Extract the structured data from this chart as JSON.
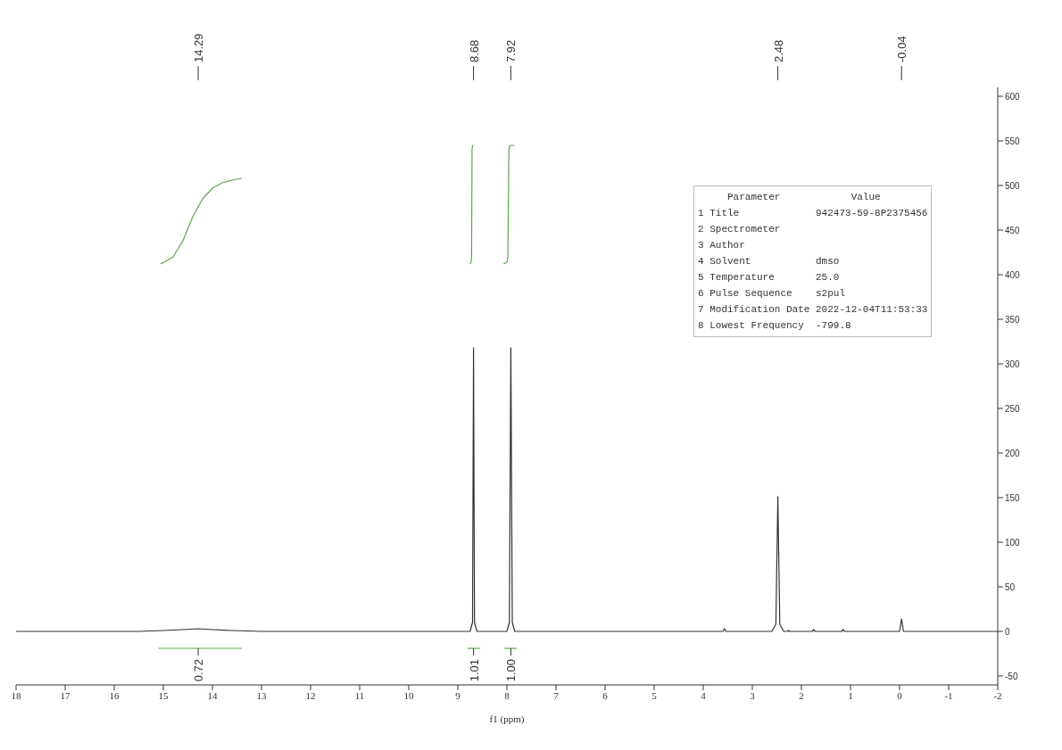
{
  "chart_data": {
    "type": "line",
    "xlabel": "f1 (ppm)",
    "xlim": [
      18,
      -2
    ],
    "xticks": [
      18,
      17,
      16,
      15,
      14,
      13,
      12,
      11,
      10,
      9,
      8,
      7,
      6,
      5,
      4,
      3,
      2,
      1,
      0,
      -1,
      -2
    ],
    "ylim": [
      -60,
      610
    ],
    "yticks": [
      -50,
      0,
      50,
      100,
      150,
      200,
      250,
      300,
      350,
      400,
      450,
      500,
      550,
      600
    ],
    "marker": "none",
    "line_style": "solid",
    "series": [
      {
        "color": "#333333",
        "x": [
          18,
          15.5,
          15,
          14.6,
          14.29,
          14.0,
          13.6,
          13,
          9.0,
          8.75,
          8.7,
          8.68,
          8.66,
          8.61,
          8.3,
          8.0,
          7.95,
          7.92,
          7.89,
          7.84,
          7.7,
          5,
          3.6,
          3.57,
          3.54,
          2.6,
          2.52,
          2.48,
          2.44,
          2.36,
          2.28,
          2.26,
          2.24,
          1.78,
          1.75,
          1.72,
          1.18,
          1.15,
          1.12,
          0.03,
          0,
          -0.04,
          -0.08,
          -0.11,
          -2
        ],
        "values": [
          0,
          0,
          1,
          2,
          3,
          2,
          1,
          0,
          0,
          0,
          10,
          318,
          10,
          0,
          0,
          0,
          10,
          318,
          10,
          0,
          0,
          0,
          0,
          3,
          0,
          0,
          8,
          151,
          8,
          0,
          0,
          1,
          0,
          0,
          2,
          0,
          0,
          2,
          0,
          0,
          0,
          14,
          0,
          0,
          0
        ]
      },
      {
        "color": "#5aa84a",
        "x": [
          15.05,
          14.8,
          14.6,
          14.4,
          14.2,
          14.0,
          13.8,
          13.6,
          13.4
        ],
        "values": [
          412,
          420,
          438,
          465,
          485,
          497,
          503,
          506,
          508
        ]
      },
      {
        "color": "#5aa84a",
        "x": [
          8.75,
          8.73,
          8.72,
          8.71,
          8.7,
          8.68
        ],
        "values": [
          412,
          414,
          420,
          540,
          545,
          545
        ]
      },
      {
        "color": "#5aa84a",
        "x": [
          8.07,
          8.0,
          7.98,
          7.96,
          7.94,
          7.85
        ],
        "values": [
          412,
          414,
          420,
          540,
          545,
          545
        ]
      },
      {
        "color": "#5aa84a",
        "x": [
          15.1,
          13.4
        ],
        "values": [
          -19,
          -19
        ]
      },
      {
        "color": "#5aa84a",
        "x": [
          8.8,
          8.55
        ],
        "values": [
          -19,
          -19
        ]
      },
      {
        "color": "#5aa84a",
        "x": [
          8.05,
          7.8
        ],
        "values": [
          -19,
          -19
        ]
      }
    ],
    "annotations": [
      {
        "text": "14.29",
        "x": 14.29
      },
      {
        "text": "8.68",
        "x": 8.68
      },
      {
        "text": "7.92",
        "x": 7.92
      },
      {
        "text": "2.48",
        "x": 2.48
      },
      {
        "text": "-0.04",
        "x": -0.04
      },
      {
        "text": "0.72",
        "x": 14.29,
        "y": -19
      },
      {
        "text": "1.01",
        "x": 8.68,
        "y": -19
      },
      {
        "text": "1.00",
        "x": 7.92,
        "y": -19
      },
      "     Parameter            Value",
      "1 Title             942473-59-8P2375456",
      "2 Spectrometer",
      "3 Author",
      "4 Solvent           dmso",
      "5 Temperature       25.0",
      "6 Pulse Sequence    s2pul",
      "7 Modification Date 2022-12-04T11:53:33",
      "8 Lowest Frequency  -799.8"
    ]
  }
}
